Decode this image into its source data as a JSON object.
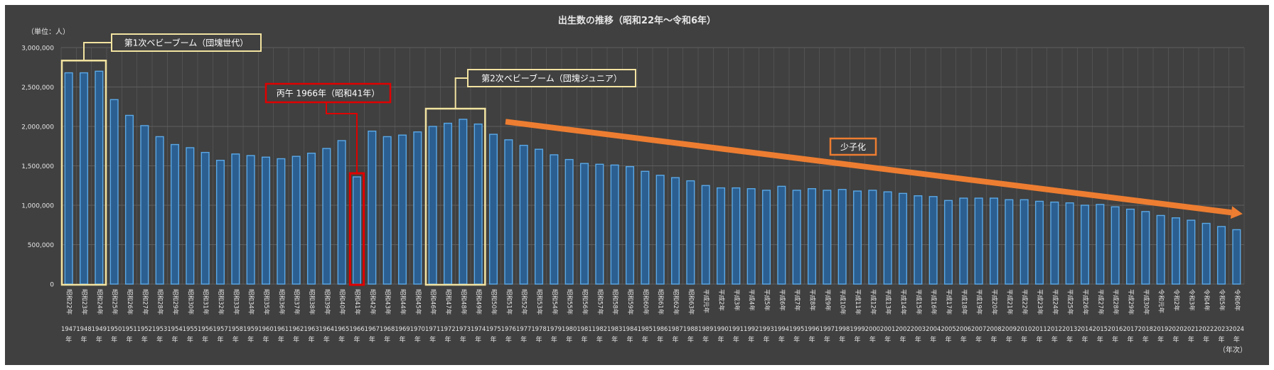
{
  "colors": {
    "outer_bg": "#ffffff",
    "plot_bg": "#404040",
    "grid": "#5e5e5e",
    "text": "#e6e6e6",
    "bar_fill": "#2c5f91",
    "bar_edge": "#5aa8e6",
    "baby_boom_box": "#f2e3a0",
    "hinoeuma_box": "#e00000",
    "trend_arrow": "#ed7d31"
  },
  "chart_data": {
    "type": "bar",
    "title": "出生数の推移（昭和22年～令和6年）",
    "unit_label": "（単位：人）",
    "x_unit_label": "（年次）",
    "ylim": [
      0,
      3000000
    ],
    "y_ticks": [
      "0",
      "500,000",
      "1,000,000",
      "1,500,000",
      "2,000,000",
      "2,500,000",
      "3,000,000"
    ],
    "grid": true,
    "categories": [
      "1947",
      "1948",
      "1949",
      "1950",
      "1951",
      "1952",
      "1953",
      "1954",
      "1955",
      "1956",
      "1957",
      "1958",
      "1959",
      "1960",
      "1961",
      "1962",
      "1963",
      "1964",
      "1965",
      "1966",
      "1967",
      "1968",
      "1969",
      "1970",
      "1971",
      "1972",
      "1973",
      "1974",
      "1975",
      "1976",
      "1977",
      "1978",
      "1979",
      "1980",
      "1981",
      "1982",
      "1983",
      "1984",
      "1985",
      "1986",
      "1987",
      "1988",
      "1989",
      "1990",
      "1991",
      "1992",
      "1993",
      "1994",
      "1995",
      "1996",
      "1997",
      "1998",
      "1999",
      "2000",
      "2001",
      "2002",
      "2003",
      "2004",
      "2005",
      "2006",
      "2007",
      "2008",
      "2009",
      "2010",
      "2011",
      "2012",
      "2013",
      "2014",
      "2015",
      "2016",
      "2017",
      "2018",
      "2019",
      "2020",
      "2021",
      "2022",
      "2023",
      "2024"
    ],
    "era_labels": [
      "昭和22年",
      "昭和23年",
      "昭和24年",
      "昭和25年",
      "昭和26年",
      "昭和27年",
      "昭和28年",
      "昭和29年",
      "昭和30年",
      "昭和31年",
      "昭和32年",
      "昭和33年",
      "昭和34年",
      "昭和35年",
      "昭和36年",
      "昭和37年",
      "昭和38年",
      "昭和39年",
      "昭和40年",
      "昭和41年",
      "昭和42年",
      "昭和43年",
      "昭和44年",
      "昭和45年",
      "昭和46年",
      "昭和47年",
      "昭和48年",
      "昭和49年",
      "昭和50年",
      "昭和51年",
      "昭和52年",
      "昭和53年",
      "昭和54年",
      "昭和55年",
      "昭和56年",
      "昭和57年",
      "昭和58年",
      "昭和59年",
      "昭和60年",
      "昭和61年",
      "昭和62年",
      "昭和63年",
      "平成元年",
      "平成2年",
      "平成3年",
      "平成4年",
      "平成5年",
      "平成6年",
      "平成7年",
      "平成8年",
      "平成9年",
      "平成10年",
      "平成11年",
      "平成12年",
      "平成13年",
      "平成14年",
      "平成15年",
      "平成16年",
      "平成17年",
      "平成18年",
      "平成19年",
      "平成20年",
      "平成21年",
      "平成22年",
      "平成23年",
      "平成24年",
      "平成25年",
      "平成26年",
      "平成27年",
      "平成28年",
      "平成29年",
      "平成30年",
      "令和元年",
      "令和2年",
      "令和3年",
      "令和4年",
      "令和5年",
      "令和6年"
    ],
    "year_suffix": "年",
    "values": [
      2680000,
      2680000,
      2700000,
      2340000,
      2140000,
      2010000,
      1870000,
      1770000,
      1730000,
      1670000,
      1570000,
      1650000,
      1630000,
      1610000,
      1590000,
      1620000,
      1660000,
      1720000,
      1820000,
      1360000,
      1940000,
      1870000,
      1890000,
      1930000,
      2000000,
      2040000,
      2090000,
      2030000,
      1900000,
      1830000,
      1760000,
      1710000,
      1640000,
      1580000,
      1530000,
      1520000,
      1510000,
      1490000,
      1430000,
      1380000,
      1350000,
      1310000,
      1250000,
      1220000,
      1220000,
      1210000,
      1190000,
      1240000,
      1190000,
      1210000,
      1190000,
      1200000,
      1180000,
      1190000,
      1170000,
      1150000,
      1120000,
      1110000,
      1060000,
      1090000,
      1090000,
      1090000,
      1070000,
      1070000,
      1050000,
      1040000,
      1030000,
      1000000,
      1010000,
      980000,
      950000,
      920000,
      870000,
      840000,
      810000,
      770000,
      730000,
      690000
    ],
    "annotations": [
      {
        "id": "boom1",
        "text": "第1次ベビーブーム（団塊世代）",
        "from_index": 0,
        "to_index": 2,
        "style": "boom"
      },
      {
        "id": "hinoeuma",
        "text": "丙午 1966年（昭和41年）",
        "from_index": 19,
        "to_index": 19,
        "style": "hinoeuma"
      },
      {
        "id": "boom2",
        "text": "第2次ベビーブーム（団塊ジュニア）",
        "from_index": 24,
        "to_index": 27,
        "style": "boom"
      }
    ],
    "trend": {
      "label": "少子化",
      "from_index": 29,
      "to_index": 77,
      "from_value": 2060000,
      "to_value": 890000
    }
  }
}
